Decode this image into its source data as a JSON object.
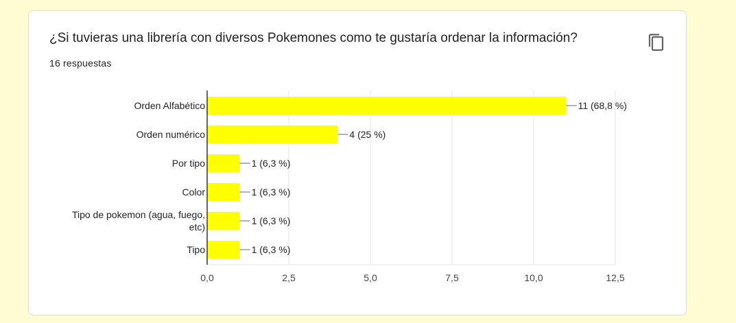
{
  "question": {
    "title": "¿Si tuvieras una librería con diversos Pokemones como te gustaría ordenar la información?",
    "responses": "16 respuestas",
    "copy_icon": "copy-icon"
  },
  "colors": {
    "bar": "#ffff00",
    "grid": "#e6e6e6",
    "axis": "#333333",
    "page_background": "#fffcd3"
  },
  "chart_data": {
    "type": "bar",
    "orientation": "horizontal",
    "categories": [
      "Orden Alfabético",
      "Orden numérico",
      "Por tipo",
      "Color",
      "Tipo de pokemon (agua, fuego, etc)",
      "Tipo"
    ],
    "category_label_lines": [
      [
        "Orden Alfabético"
      ],
      [
        "Orden numérico"
      ],
      [
        "Por tipo"
      ],
      [
        "Color"
      ],
      [
        "Tipo de pokemon (agua, fuego,",
        "etc)"
      ],
      [
        "Tipo"
      ]
    ],
    "values": [
      11,
      4,
      1,
      1,
      1,
      1
    ],
    "data_labels": [
      "11 (68,8 %)",
      "4 (25 %)",
      "1 (6,3 %)",
      "1 (6,3 %)",
      "1 (6,3 %)",
      "1 (6,3 %)"
    ],
    "xlim": [
      0,
      12.5
    ],
    "xticks": [
      0,
      2.5,
      5,
      7.5,
      10,
      12.5
    ],
    "xtick_labels": [
      "0,0",
      "2,5",
      "5,0",
      "7,5",
      "10,0",
      "12,5"
    ],
    "grid": true,
    "legend": "none"
  }
}
